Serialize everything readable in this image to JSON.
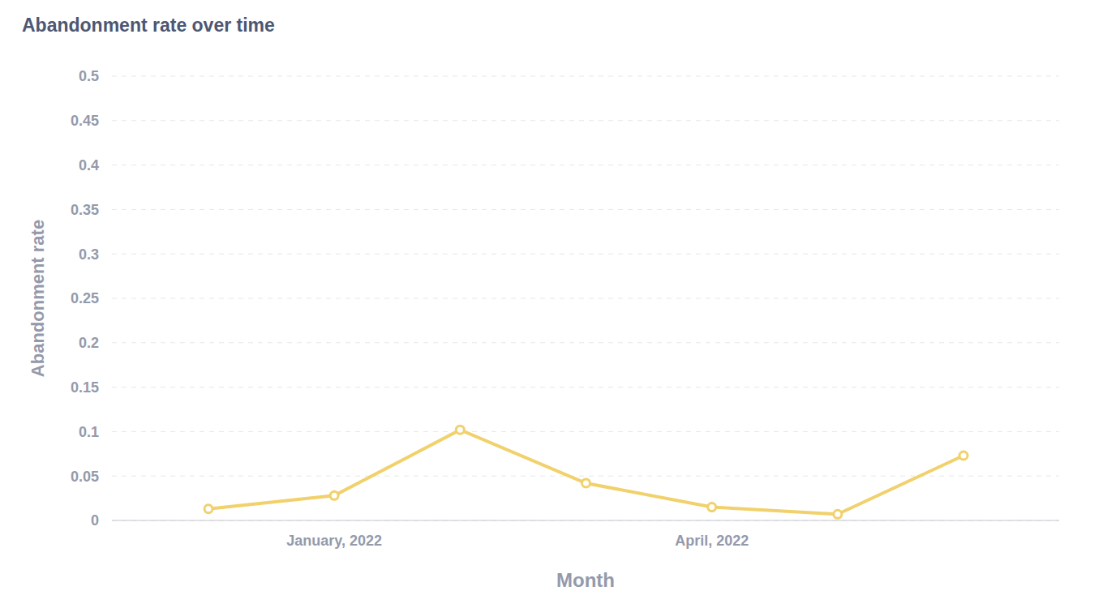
{
  "chart_data": {
    "type": "line",
    "title": "Abandonment rate over time",
    "x_label": "Month",
    "y_label": "Abandonment rate",
    "categories": [
      null,
      "January, 2022",
      null,
      null,
      "April, 2022",
      null,
      null
    ],
    "values": [
      0.013,
      0.028,
      0.102,
      0.042,
      0.015,
      0.007,
      0.073
    ],
    "color": "#f1d16b",
    "marker": "circle",
    "ylim": [
      0,
      0.5
    ],
    "yticks": [
      0,
      0.05,
      0.1,
      0.15,
      0.2,
      0.25,
      0.3,
      0.35,
      0.4,
      0.45,
      0.5
    ],
    "grid": true
  }
}
